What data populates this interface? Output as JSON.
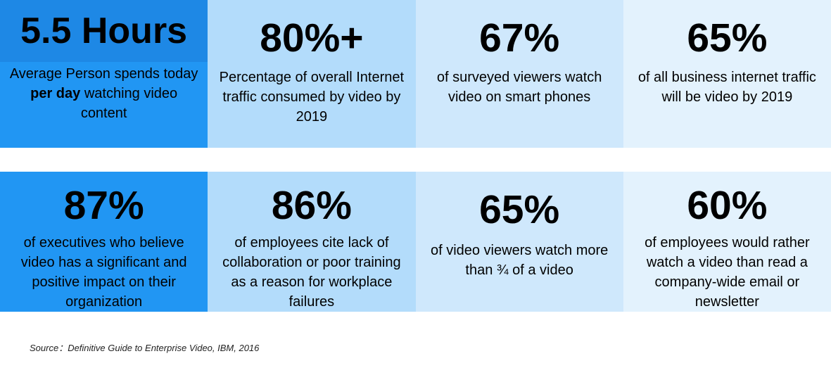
{
  "tiles": [
    {
      "stat": "5.5 Hours",
      "desc_before": "Average Person spends today ",
      "desc_bold": "per day",
      "desc_after": " watching video content"
    },
    {
      "stat": "80%+",
      "desc": "Percentage of overall Internet traffic consumed by video by 2019"
    },
    {
      "stat": "67%",
      "desc": "of surveyed viewers watch video on smart phones"
    },
    {
      "stat": "65%",
      "desc": "of all business internet traffic will be video by 2019"
    },
    {
      "stat": "87%",
      "desc": "of executives who believe video has a significant and positive impact on their organization"
    },
    {
      "stat": "86%",
      "desc": "of employees cite lack of collaboration or poor training as a reason for workplace failures"
    },
    {
      "stat": "65%",
      "desc": "of video viewers watch more than ¾ of a video"
    },
    {
      "stat": "60%",
      "desc": "of employees would rather watch a video than read a company-wide email or newsletter"
    }
  ],
  "source": "Source：Definitive Guide to Enterprise Video, IBM, 2016",
  "colors": {
    "col1": "#2196f3",
    "col1_band": "#1e88e5",
    "col2": "#b3dcfb",
    "col3": "#cfe8fc",
    "col4": "#e3f2fd"
  }
}
